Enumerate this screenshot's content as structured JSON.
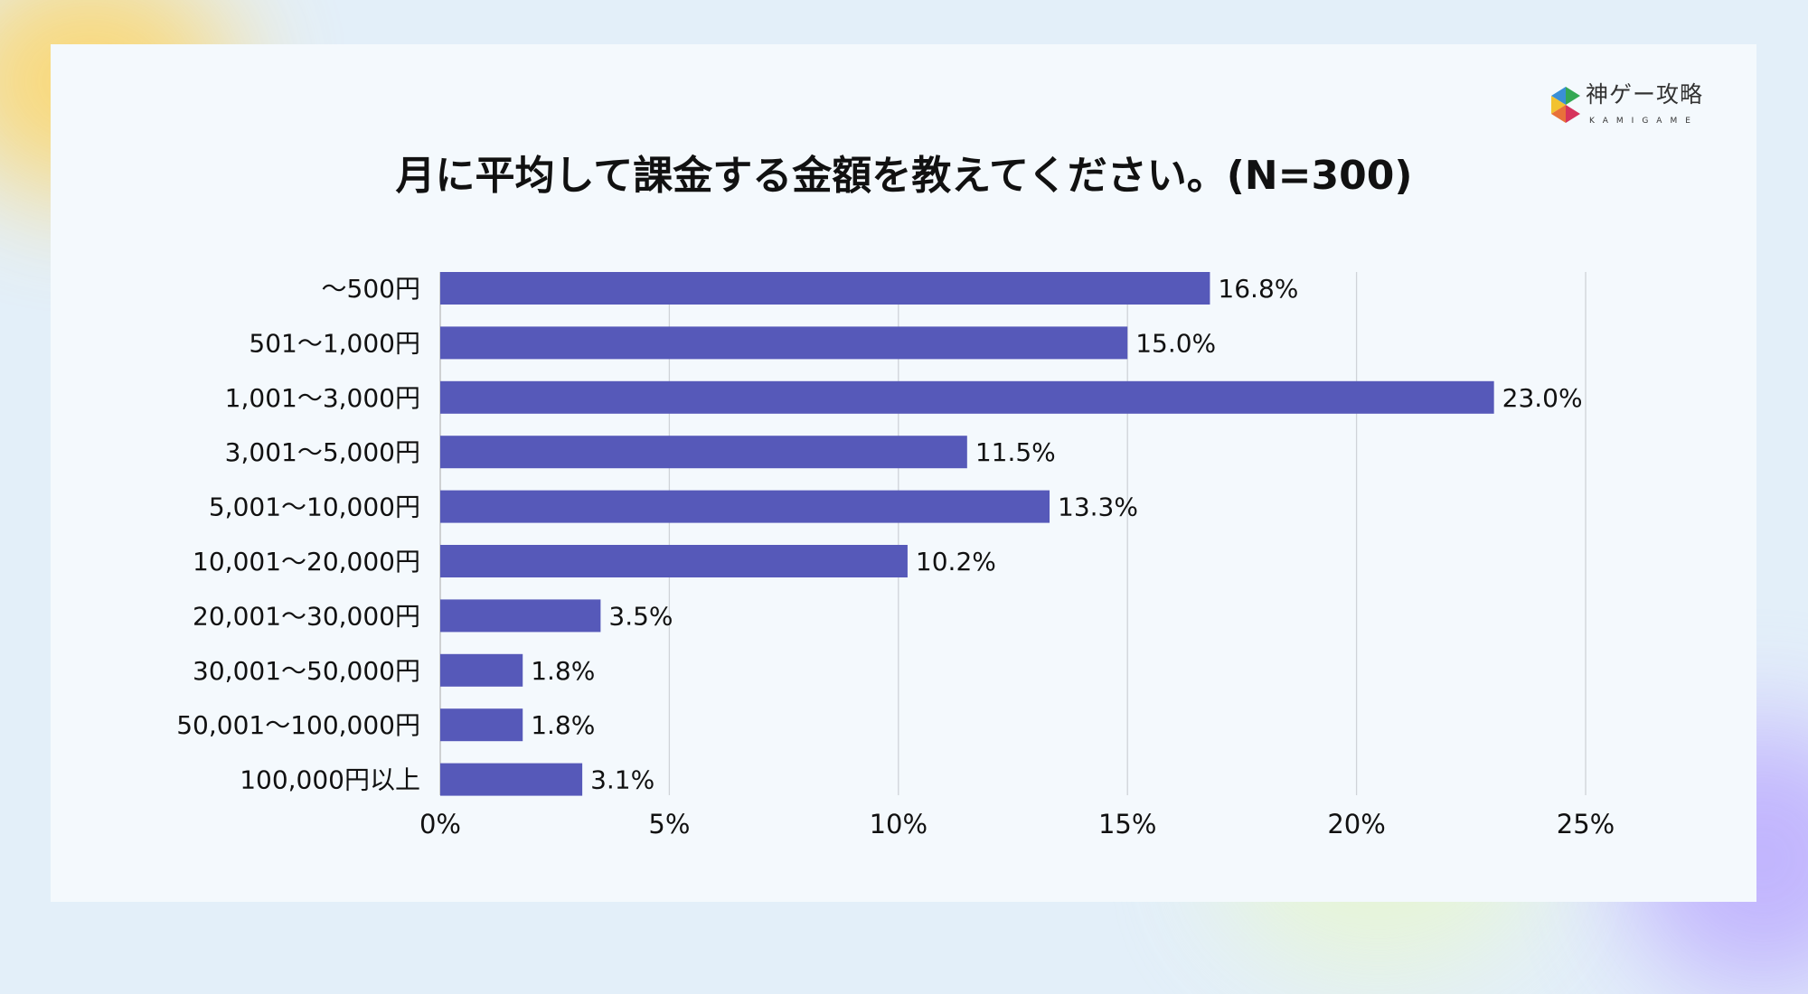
{
  "logo": {
    "text": "神ゲー攻略",
    "subtext": "KAMIGAME"
  },
  "chart_data": {
    "type": "bar",
    "orientation": "horizontal",
    "title": "月に平均して課金する金額を教えてください。(N=300)",
    "categories": [
      "〜500円",
      "501〜1,000円",
      "1,001〜3,000円",
      "3,001〜5,000円",
      "5,001〜10,000円",
      "10,001〜20,000円",
      "20,001〜30,000円",
      "30,001〜50,000円",
      "50,001〜100,000円",
      "100,000円以上"
    ],
    "values": [
      16.8,
      15.0,
      23.0,
      11.5,
      13.3,
      10.2,
      3.5,
      1.8,
      1.8,
      3.1
    ],
    "data_labels": [
      "16.8%",
      "15.0%",
      "23.0%",
      "11.5%",
      "13.3%",
      "10.2%",
      "3.5%",
      "1.8%",
      "1.8%",
      "3.1%"
    ],
    "xlim": [
      0,
      25
    ],
    "xticks": [
      "0%",
      "5%",
      "10%",
      "15%",
      "20%",
      "25%"
    ],
    "grid": true,
    "bar_color": "#5659b9"
  }
}
